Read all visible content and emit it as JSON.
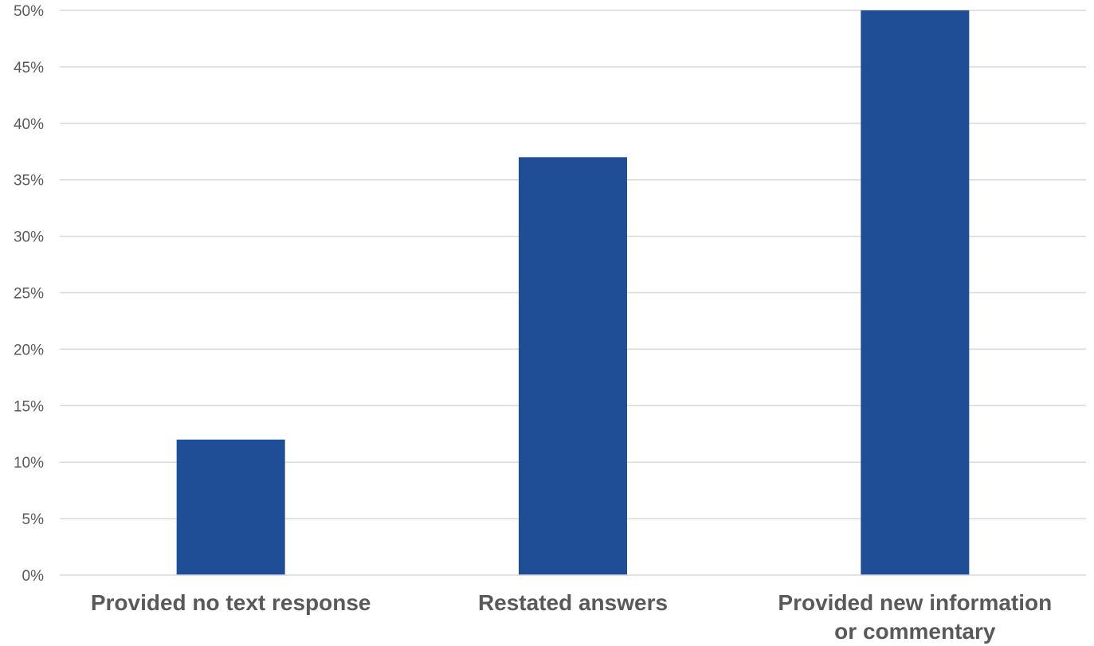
{
  "chart_data": {
    "type": "bar",
    "categories": [
      [
        "Provided no text response"
      ],
      [
        "Restated answers"
      ],
      [
        "Provided new information",
        "or commentary"
      ]
    ],
    "values": [
      12,
      37,
      50
    ],
    "ylim": [
      0,
      50
    ],
    "yticks": [
      0,
      5,
      10,
      15,
      20,
      25,
      30,
      35,
      40,
      45,
      50
    ],
    "ytick_format": "{v}%",
    "grid": true,
    "bar_color": "#1f4e96",
    "title": "",
    "xlabel": "",
    "ylabel": ""
  }
}
